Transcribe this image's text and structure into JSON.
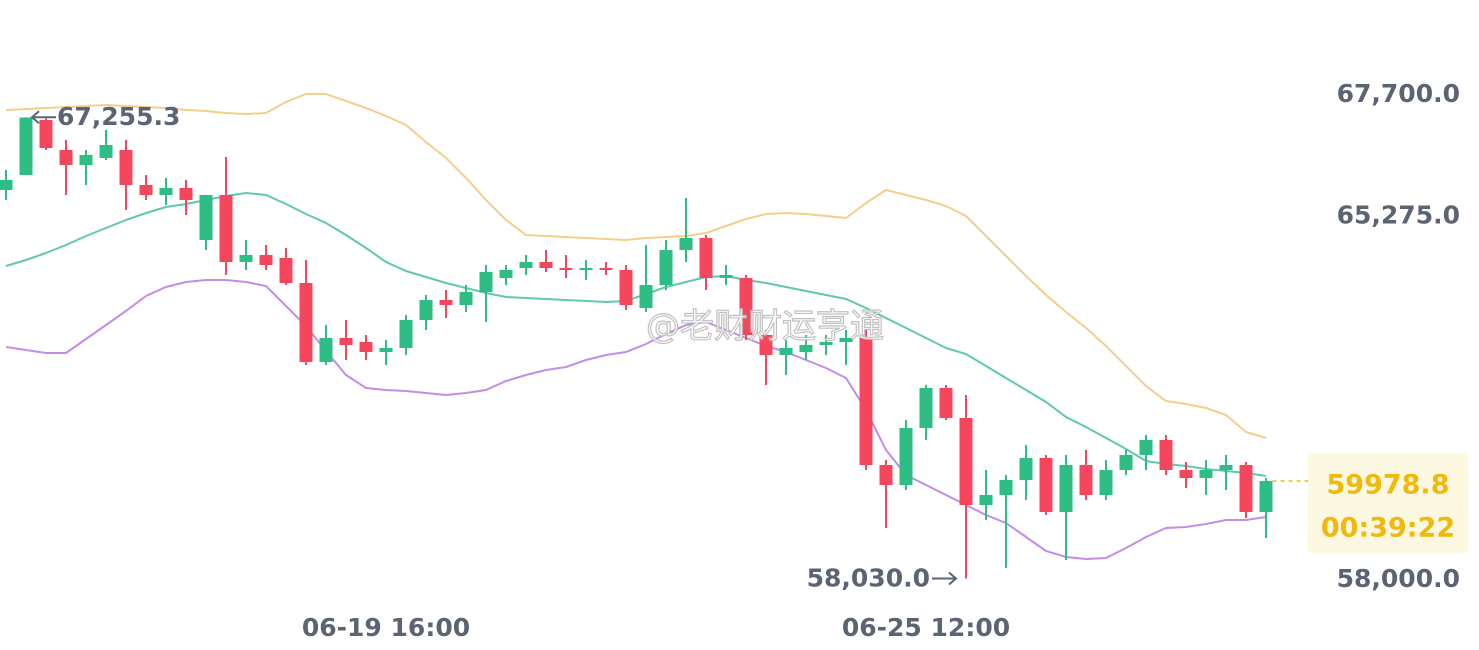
{
  "chart_data": {
    "type": "candlestick",
    "categories": [
      null,
      null,
      null,
      null,
      null,
      null,
      null,
      null,
      null,
      null,
      null,
      null,
      null,
      null,
      null,
      null,
      null,
      null,
      null,
      "06-19 16:00",
      null,
      null,
      null,
      null,
      null,
      null,
      null,
      null,
      null,
      null,
      null,
      null,
      null,
      null,
      null,
      null,
      null,
      null,
      null,
      null,
      null,
      null,
      null,
      null,
      null,
      null,
      "06-25 12:00",
      null,
      null,
      null,
      null,
      null,
      null,
      null,
      null,
      null,
      null,
      null,
      null,
      null,
      null,
      null,
      null,
      null
    ],
    "open": [
      65800,
      66100,
      67200,
      66600,
      66300,
      66440,
      66600,
      65900,
      65700,
      65840,
      64800,
      65700,
      64360,
      64500,
      64440,
      63940,
      62360,
      62840,
      62760,
      62560,
      62640,
      63200,
      63600,
      63500,
      63760,
      64040,
      64240,
      64360,
      64240,
      64200,
      64240,
      64200,
      63440,
      63900,
      64600,
      64840,
      64040,
      64040,
      62900,
      62500,
      62560,
      62700,
      62760,
      62840,
      60300,
      59900,
      61040,
      61840,
      61240,
      59500,
      59700,
      60000,
      60440,
      59360,
      60300,
      59700,
      60200,
      60500,
      60800,
      60200,
      60040,
      60200,
      60300,
      59360
    ],
    "high": [
      66200,
      67255.3,
      67230,
      66800,
      66600,
      67000,
      66800,
      66100,
      66040,
      66000,
      65700,
      66460,
      64800,
      64700,
      64640,
      64400,
      63100,
      63200,
      62900,
      62800,
      63300,
      63700,
      63800,
      63900,
      64300,
      64300,
      64500,
      64600,
      64500,
      64400,
      64360,
      64300,
      64700,
      64800,
      65640,
      64900,
      64300,
      64100,
      63000,
      62800,
      62900,
      62900,
      63000,
      63000,
      60400,
      61200,
      61900,
      61900,
      61700,
      60200,
      60100,
      60700,
      60500,
      60500,
      60600,
      60400,
      60600,
      60900,
      60900,
      60360,
      60400,
      60500,
      60360,
      60040
    ],
    "low": [
      65600,
      66100,
      66600,
      65700,
      65900,
      66400,
      65400,
      65600,
      65500,
      65300,
      64600,
      64100,
      64200,
      64200,
      63900,
      62300,
      62300,
      62400,
      62400,
      62300,
      62500,
      63000,
      63240,
      63360,
      63160,
      63900,
      64100,
      64160,
      64040,
      64000,
      64100,
      63400,
      63360,
      63800,
      64360,
      63800,
      63900,
      62800,
      61900,
      62100,
      62400,
      62500,
      62300,
      60200,
      59040,
      59800,
      60800,
      61200,
      58030,
      59200,
      58240,
      59600,
      59300,
      58400,
      59600,
      59600,
      60100,
      60200,
      60100,
      59840,
      59700,
      59800,
      59240,
      58840
    ],
    "close": [
      66000,
      67250,
      66640,
      66300,
      66500,
      66700,
      65900,
      65700,
      65840,
      65600,
      65700,
      64360,
      64500,
      64300,
      63940,
      62360,
      62840,
      62700,
      62560,
      62640,
      63200,
      63600,
      63500,
      63760,
      64160,
      64200,
      64360,
      64240,
      64200,
      64240,
      64200,
      63500,
      63900,
      64600,
      64840,
      64040,
      64100,
      62900,
      62500,
      62640,
      62700,
      62760,
      62840,
      60300,
      59900,
      61040,
      61840,
      61240,
      59500,
      59700,
      60000,
      60440,
      59360,
      60300,
      59700,
      60200,
      60500,
      60800,
      60200,
      60040,
      60200,
      60300,
      59360,
      59978.8
    ],
    "up_color": "#2ebd85",
    "down_color": "#f6465d",
    "bands": [
      {
        "color": "#f3cf8a",
        "values": [
          67400,
          67420,
          67440,
          67460,
          67480,
          67500,
          67480,
          67460,
          67440,
          67400,
          67380,
          67340,
          67320,
          67340,
          67560,
          67720,
          67720,
          67580,
          67440,
          67280,
          67100,
          66760,
          66440,
          66040,
          65600,
          65200,
          64900,
          64880,
          64860,
          64840,
          64820,
          64800,
          64840,
          64860,
          64880,
          64940,
          65080,
          65220,
          65320,
          65340,
          65320,
          65280,
          65240,
          65540,
          65800,
          65700,
          65600,
          65480,
          65280,
          64880,
          64480,
          64080,
          63700,
          63360,
          63040,
          62680,
          62280,
          61880,
          61580,
          61520,
          61440,
          61300,
          60960,
          60840
        ]
      },
      {
        "color": "#5ec8b2",
        "values": [
          64280,
          64400,
          64540,
          64700,
          64880,
          65040,
          65200,
          65340,
          65460,
          65520,
          65600,
          65680,
          65740,
          65700,
          65520,
          65320,
          65140,
          64900,
          64640,
          64360,
          64180,
          64060,
          63940,
          63840,
          63740,
          63660,
          63640,
          63620,
          63600,
          63580,
          63560,
          63580,
          63720,
          63860,
          63960,
          64060,
          64080,
          64000,
          63940,
          63860,
          63780,
          63700,
          63620,
          63440,
          63240,
          63040,
          62840,
          62640,
          62520,
          62280,
          62040,
          61800,
          61560,
          61260,
          61060,
          60840,
          60620,
          60380,
          60320,
          60280,
          60220,
          60180,
          60140,
          60080
        ]
      },
      {
        "color": "#c38ce9",
        "values": [
          62660,
          62600,
          62540,
          62540,
          62820,
          63100,
          63380,
          63680,
          63860,
          63960,
          64000,
          64000,
          63960,
          63880,
          63480,
          63080,
          62580,
          62100,
          61840,
          61800,
          61780,
          61740,
          61700,
          61740,
          61800,
          61980,
          62100,
          62200,
          62260,
          62400,
          62500,
          62560,
          62720,
          62920,
          63100,
          63160,
          63000,
          62840,
          62680,
          62560,
          62400,
          62240,
          62040,
          61400,
          60600,
          60100,
          59900,
          59700,
          59500,
          59300,
          59140,
          58860,
          58580,
          58460,
          58420,
          58440,
          58640,
          58860,
          59040,
          59060,
          59120,
          59200,
          59200,
          59260
        ]
      }
    ],
    "ylim": [
      56600,
      69600
    ],
    "yticks": [
      {
        "value": 67700,
        "label": "67,700.0"
      },
      {
        "value": 65275,
        "label": "65,275.0"
      },
      {
        "value": 58000,
        "label": "58,000.0"
      }
    ],
    "high_label": "67,255.3",
    "low_label": "58,030.0",
    "last_price_label": "59978.8",
    "countdown": "00:39:22",
    "price_color": "#f0b90b",
    "watermark": "@老财财运亨通"
  }
}
